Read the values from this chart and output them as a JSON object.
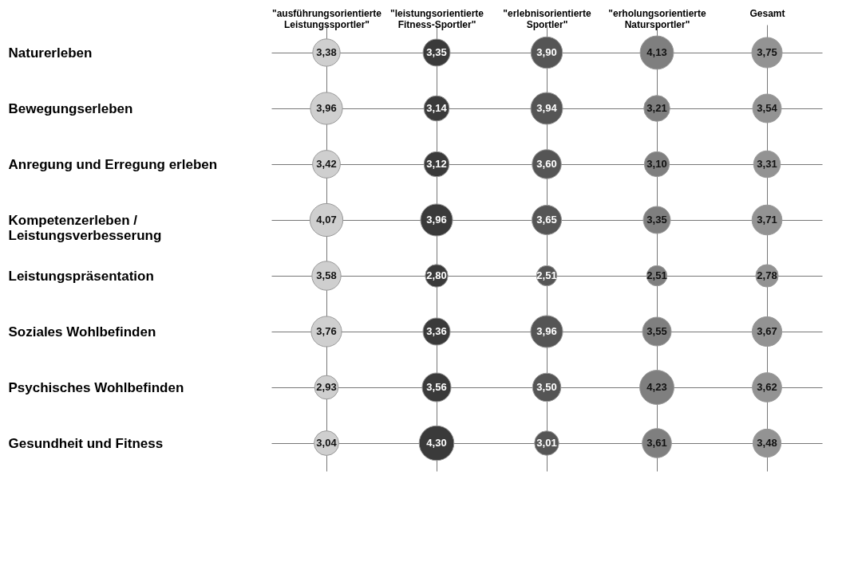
{
  "chart_data": {
    "type": "heatmap",
    "categories": [
      "\"ausführungsorientierte Leistungssportler\"",
      "\"leistungsorientierte Fitness-Sportler\"",
      "\"erlebnisorientierte Sportler\"",
      "\"erholungsorientierte Natursportler\"",
      "Gesamt"
    ],
    "y_categories": [
      "Naturerleben",
      "Bewegungserleben",
      "Anregung und Erregung erleben",
      "Kompetenzerleben / Leistungsverbesserung",
      "Leistungspräsentation",
      "Soziales Wohlbefinden",
      "Psychisches Wohlbefinden",
      "Gesundheit und Fitness"
    ],
    "cells": [
      [
        3.38,
        3.35,
        3.9,
        4.13,
        3.75
      ],
      [
        3.96,
        3.14,
        3.94,
        3.21,
        3.54
      ],
      [
        3.42,
        3.12,
        3.6,
        3.1,
        3.31
      ],
      [
        4.07,
        3.96,
        3.65,
        3.35,
        3.71
      ],
      [
        3.58,
        2.8,
        2.51,
        2.51,
        2.78
      ],
      [
        3.76,
        3.36,
        3.96,
        3.55,
        3.67
      ],
      [
        2.93,
        3.56,
        3.5,
        4.23,
        3.62
      ],
      [
        3.04,
        4.3,
        3.01,
        3.61,
        3.48
      ]
    ],
    "cell_labels": [
      [
        "3,38",
        "3,35",
        "3,90",
        "4,13",
        "3,75"
      ],
      [
        "3,96",
        "3,14",
        "3,94",
        "3,21",
        "3,54"
      ],
      [
        "3,42",
        "3,12",
        "3,60",
        "3,10",
        "3,31"
      ],
      [
        "4,07",
        "3,96",
        "3,65",
        "3,35",
        "3,71"
      ],
      [
        "3,58",
        "2,80",
        "2,51",
        "2,51",
        "2,78"
      ],
      [
        "3,76",
        "3,36",
        "3,96",
        "3,55",
        "3,67"
      ],
      [
        "2,93",
        "3,56",
        "3,50",
        "4,23",
        "3,62"
      ],
      [
        "3,04",
        "4,30",
        "3,01",
        "3,61",
        "3,48"
      ]
    ],
    "colors": [
      "#cfcfcf",
      "#3a3a3a",
      "#555555",
      "#7f7f7f",
      "#939393"
    ],
    "grid": true
  }
}
